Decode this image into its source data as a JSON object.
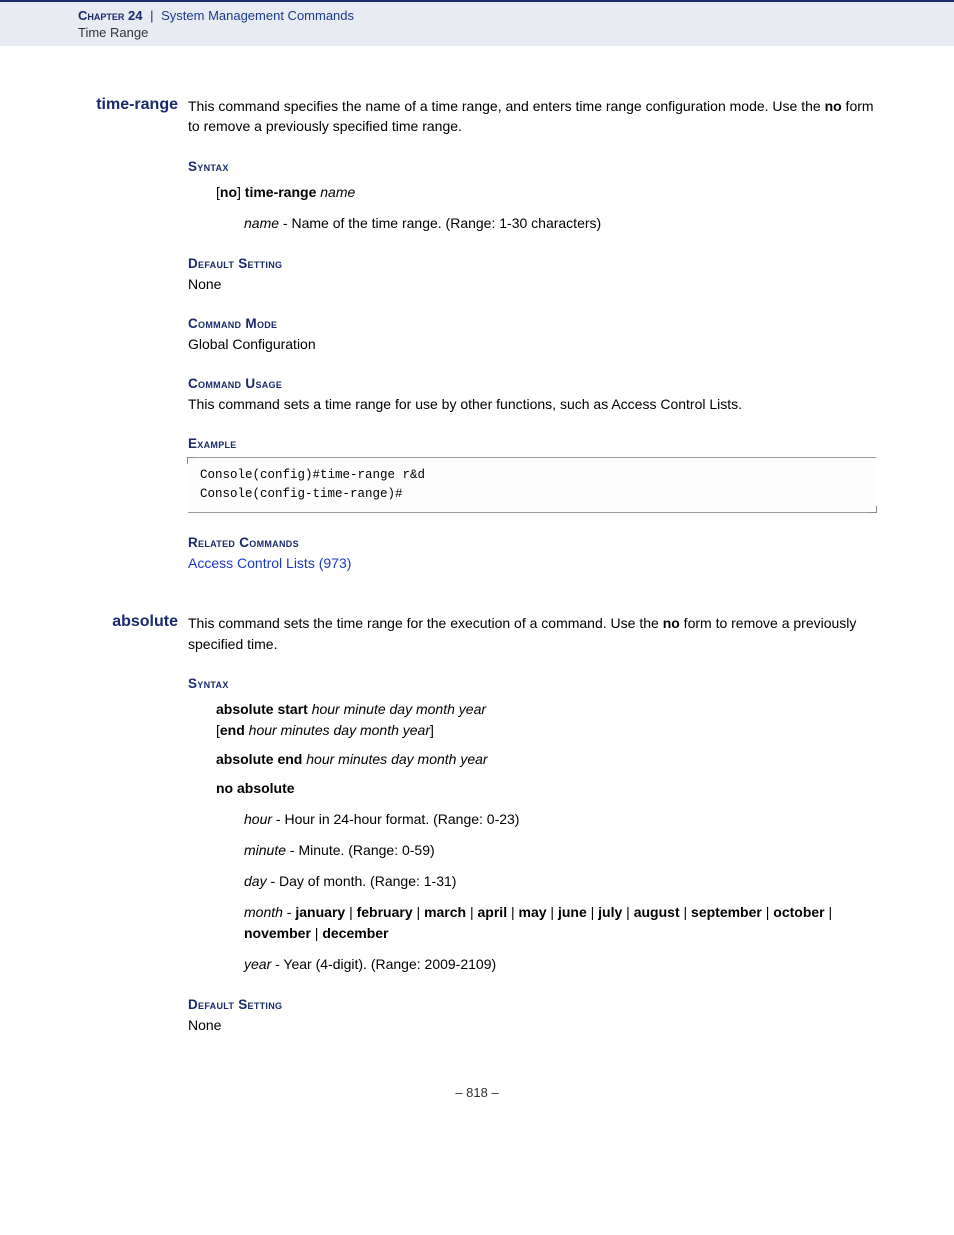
{
  "header": {
    "chapter_label": "Chapter 24",
    "separator": "|",
    "chapter_title": "System Management Commands",
    "sub": "Time Range"
  },
  "page_number": "– 818 –",
  "commands": [
    {
      "name": "time-range",
      "desc_parts": [
        {
          "t": "This command specifies the name of a time range, and enters time range configuration mode. Use the "
        },
        {
          "t": "no",
          "b": true
        },
        {
          "t": " form to remove a previously specified time range."
        }
      ],
      "sections": [
        {
          "header": "Syntax",
          "syntax_lines": [
            [
              {
                "t": "["
              },
              {
                "t": "no",
                "b": true
              },
              {
                "t": "] "
              },
              {
                "t": "time-range",
                "b": true
              },
              {
                "t": " "
              },
              {
                "t": "name",
                "i": true
              }
            ]
          ],
          "params": [
            [
              {
                "t": "name",
                "i": true
              },
              {
                "t": " - Name of the time range. (Range: 1-30 characters)"
              }
            ]
          ]
        },
        {
          "header": "Default Setting",
          "plain": "None"
        },
        {
          "header": "Command Mode",
          "plain": "Global Configuration"
        },
        {
          "header": "Command Usage",
          "plain": "This command sets a time range for use by other functions, such as Access Control Lists."
        },
        {
          "header": "Example",
          "example": "Console(config)#time-range r&d\nConsole(config-time-range)#"
        },
        {
          "header": "Related Commands",
          "link": "Access Control Lists (973)"
        }
      ]
    },
    {
      "name": "absolute",
      "desc_parts": [
        {
          "t": "This command sets the time range for the execution of a command. Use the "
        },
        {
          "t": "no",
          "b": true
        },
        {
          "t": " form to remove a previously specified time."
        }
      ],
      "sections": [
        {
          "header": "Syntax",
          "syntax_lines": [
            [
              {
                "t": "absolute start",
                "b": true
              },
              {
                "t": " "
              },
              {
                "t": "hour minute day month year",
                "i": true
              },
              {
                "t": "\n["
              },
              {
                "t": "end",
                "b": true
              },
              {
                "t": " "
              },
              {
                "t": "hour minutes day month year",
                "i": true
              },
              {
                "t": "]"
              }
            ],
            [
              {
                "t": "absolute end",
                "b": true
              },
              {
                "t": " "
              },
              {
                "t": "hour minutes day month year",
                "i": true
              }
            ],
            [
              {
                "t": "no absolute",
                "b": true
              }
            ]
          ],
          "params": [
            [
              {
                "t": "hour",
                "i": true
              },
              {
                "t": " - Hour in 24-hour format. (Range: 0-23)"
              }
            ],
            [
              {
                "t": "minute",
                "i": true
              },
              {
                "t": " - Minute. (Range: 0-59)"
              }
            ],
            [
              {
                "t": "day",
                "i": true
              },
              {
                "t": " - Day of month. (Range: 1-31)"
              }
            ],
            [
              {
                "t": "month",
                "i": true
              },
              {
                "t": " - "
              },
              {
                "t": "january",
                "b": true
              },
              {
                "t": " | "
              },
              {
                "t": "february",
                "b": true
              },
              {
                "t": " | "
              },
              {
                "t": "march",
                "b": true
              },
              {
                "t": " | "
              },
              {
                "t": "april",
                "b": true
              },
              {
                "t": " | "
              },
              {
                "t": "may",
                "b": true
              },
              {
                "t": " | "
              },
              {
                "t": "june",
                "b": true
              },
              {
                "t": " | "
              },
              {
                "t": "july",
                "b": true
              },
              {
                "t": " | "
              },
              {
                "t": "august",
                "b": true
              },
              {
                "t": " | "
              },
              {
                "t": "september",
                "b": true
              },
              {
                "t": " | "
              },
              {
                "t": "october",
                "b": true
              },
              {
                "t": " | "
              },
              {
                "t": "november",
                "b": true
              },
              {
                "t": " | "
              },
              {
                "t": "december",
                "b": true
              }
            ],
            [
              {
                "t": "year",
                "i": true
              },
              {
                "t": " - Year (4-digit). (Range: 2009-2109)"
              }
            ]
          ]
        },
        {
          "header": "Default Setting",
          "plain": "None"
        }
      ]
    }
  ]
}
